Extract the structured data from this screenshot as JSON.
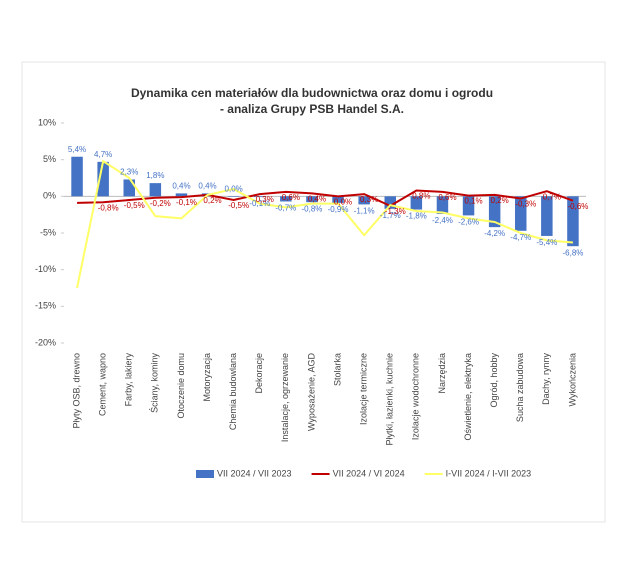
{
  "chart_data": {
    "type": "bar-line",
    "title": "Dynamika cen materiałów dla budownictwa oraz domu i ogrodu",
    "subtitle": "- analiza Grupy PSB Handel S.A.",
    "categories": [
      "Płyty OSB, drewno",
      "Cement, wapno",
      "Farby, lakiery",
      "Ściany, kominy",
      "Otoczenie domu",
      "Motoryzacja",
      "Chemia budowlana",
      "Dekoracje",
      "Instalacje, ogrzewanie",
      "Wyposażenie, AGD",
      "Stolarka",
      "Izolacje termiczne",
      "Płytki, łazienki, kuchnie",
      "Izolacje wodochronne",
      "Narzędzia",
      "Oświetlenie, elektryka",
      "Ogród, hobby",
      "Sucha zabudowa",
      "Dachy, rynny",
      "Wykończenia"
    ],
    "series": [
      {
        "name": "VII 2024 / VII 2023",
        "kind": "bar",
        "color": "#4472c4",
        "values": [
          5.4,
          4.7,
          2.3,
          1.8,
          0.4,
          0.4,
          0.0,
          -0.1,
          -0.7,
          -0.8,
          -0.9,
          -1.1,
          -1.7,
          -1.8,
          -2.4,
          -2.6,
          -4.2,
          -4.7,
          -5.4,
          -6.8
        ],
        "value_labels": [
          "5,4%",
          "4,7%",
          "2,3%",
          "1,8%",
          "0,4%",
          "0,4%",
          "0,0%",
          "-0,1%",
          "-0,7%",
          "-0,8%",
          "-0,9%",
          "-1,1%",
          "-1,7%",
          "-1,8%",
          "-2,4%",
          "-2,6%",
          "-4,2%",
          "-4,7%",
          "-5,4%",
          "-6,8%"
        ]
      },
      {
        "name": "VII 2024 / VI 2024",
        "kind": "line",
        "color": "#c00000",
        "values": [
          -0.9,
          -0.8,
          -0.5,
          -0.2,
          -0.1,
          0.2,
          -0.5,
          0.3,
          0.6,
          0.4,
          0.0,
          0.3,
          -1.3,
          0.8,
          0.6,
          0.1,
          0.2,
          -0.3,
          0.7,
          -0.6
        ],
        "value_labels": [
          null,
          "-0,8%",
          "-0,5%",
          "-0,2%",
          "-0,1%",
          "0,2%",
          "-0,5%",
          "0,3%",
          "0,6%",
          "0,4%",
          "0,0%",
          "0,3%",
          "-1,3%",
          "0,8%",
          "0,6%",
          "0,1%",
          "0,2%",
          "-0,3%",
          "0,7%",
          "-0,6%"
        ]
      },
      {
        "name": "I-VII 2024 / I-VII 2023",
        "kind": "line",
        "color": "#ffff66",
        "values": [
          -12.5,
          4.8,
          2.5,
          -2.7,
          -3.0,
          0.2,
          1.0,
          -1.0,
          -1.5,
          -1.0,
          -1.0,
          -5.3,
          -1.2,
          -2.0,
          -2.2,
          -3.0,
          -3.5,
          -5.0,
          -6.0,
          -6.3
        ]
      }
    ],
    "ylim": [
      -20,
      10
    ],
    "yticks": [
      {
        "value": 10,
        "label": "10%"
      },
      {
        "value": 5,
        "label": "5%"
      },
      {
        "value": 0,
        "label": "0%"
      },
      {
        "value": -5,
        "label": "-5%"
      },
      {
        "value": -10,
        "label": "-10%"
      },
      {
        "value": -15,
        "label": "-15%"
      },
      {
        "value": -20,
        "label": "-20%"
      }
    ],
    "legend": "bottom"
  }
}
